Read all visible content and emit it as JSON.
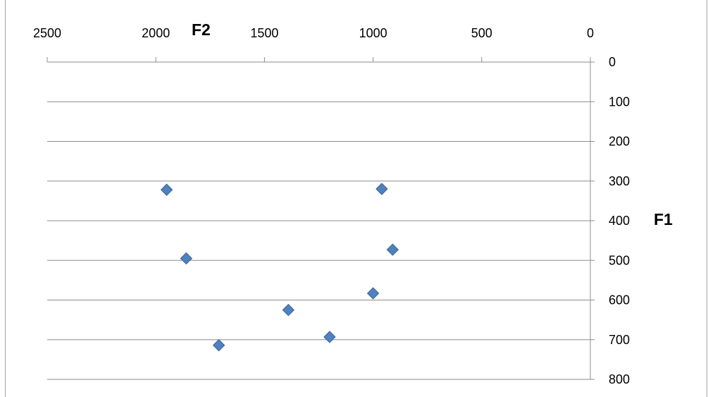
{
  "chart_data": {
    "type": "scatter",
    "title": "",
    "xlabel": "F2",
    "ylabel": "F1",
    "x_reversed": true,
    "y_reversed": true,
    "y_axis_position": "right",
    "x_axis_position": "top",
    "xlim": [
      0,
      2500
    ],
    "ylim": [
      0,
      800
    ],
    "x_ticks": [
      "2500",
      "2000",
      "1500",
      "1000",
      "500",
      "0"
    ],
    "y_ticks": [
      "0",
      "100",
      "200",
      "300",
      "400",
      "500",
      "600",
      "700",
      "800"
    ],
    "grid": "horizontal",
    "legend": "none",
    "marker": "diamond",
    "colors": {
      "marker": "#4F81BD",
      "marker_edge": "#3A6396",
      "grid": "#8C8C8C",
      "frame": "#A6A6A6"
    },
    "series": [
      {
        "points": [
          {
            "x": 1950,
            "y": 322
          },
          {
            "x": 960,
            "y": 320
          },
          {
            "x": 1860,
            "y": 495
          },
          {
            "x": 910,
            "y": 473
          },
          {
            "x": 1000,
            "y": 583
          },
          {
            "x": 1390,
            "y": 625
          },
          {
            "x": 1200,
            "y": 693
          },
          {
            "x": 1710,
            "y": 714
          }
        ]
      }
    ]
  }
}
